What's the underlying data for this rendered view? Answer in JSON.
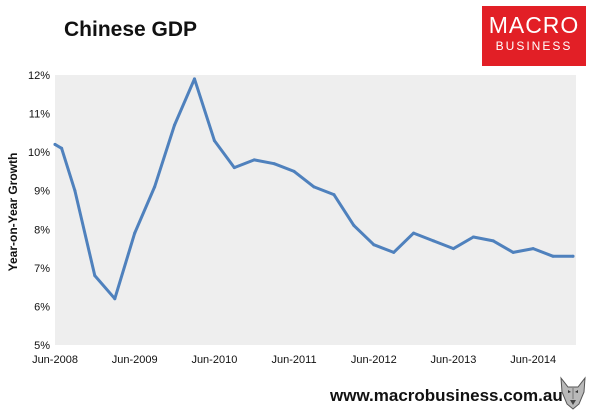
{
  "header": {
    "title": "Chinese GDP",
    "logo_line1": "MACRO",
    "logo_line2": "BUSINESS",
    "logo_color": "#e21f26"
  },
  "footer": {
    "website": "www.macrobusiness.com.au",
    "mascot_icon": "wolf-icon"
  },
  "chart_data": {
    "type": "line",
    "title": "Chinese GDP",
    "xlabel": "",
    "ylabel": "Year-on-Year Growth",
    "ylim": [
      5,
      12
    ],
    "ytick_values": [
      5,
      6,
      7,
      8,
      9,
      10,
      11,
      12
    ],
    "ytick_labels": [
      "5%",
      "6%",
      "7%",
      "8%",
      "9%",
      "10%",
      "11%",
      "12%"
    ],
    "xtick_labels": [
      "Jun-2008",
      "Jun-2009",
      "Jun-2010",
      "Jun-2011",
      "Jun-2012",
      "Jun-2013",
      "Jun-2014"
    ],
    "grid": false,
    "legend": "none",
    "series": [
      {
        "color": "#4f81bd",
        "x": [
          "Jun-2008",
          "Jul-2008",
          "Sep-2008",
          "Dec-2008",
          "Mar-2009",
          "Jun-2009",
          "Sep-2009",
          "Dec-2009",
          "Mar-2010",
          "Jun-2010",
          "Sep-2010",
          "Dec-2010",
          "Mar-2011",
          "Jun-2011",
          "Sep-2011",
          "Dec-2011",
          "Mar-2012",
          "Jun-2012",
          "Sep-2012",
          "Dec-2012",
          "Mar-2013",
          "Jun-2013",
          "Sep-2013",
          "Dec-2013",
          "Mar-2014",
          "Jun-2014",
          "Sep-2014",
          "Dec-2014"
        ],
        "values": [
          10.2,
          10.1,
          9.0,
          6.8,
          6.2,
          7.9,
          9.1,
          10.7,
          11.9,
          10.3,
          9.6,
          9.8,
          9.7,
          9.5,
          9.1,
          8.9,
          8.1,
          7.6,
          7.4,
          7.9,
          7.7,
          7.5,
          7.8,
          7.7,
          7.4,
          7.5,
          7.3,
          7.3
        ]
      }
    ]
  }
}
